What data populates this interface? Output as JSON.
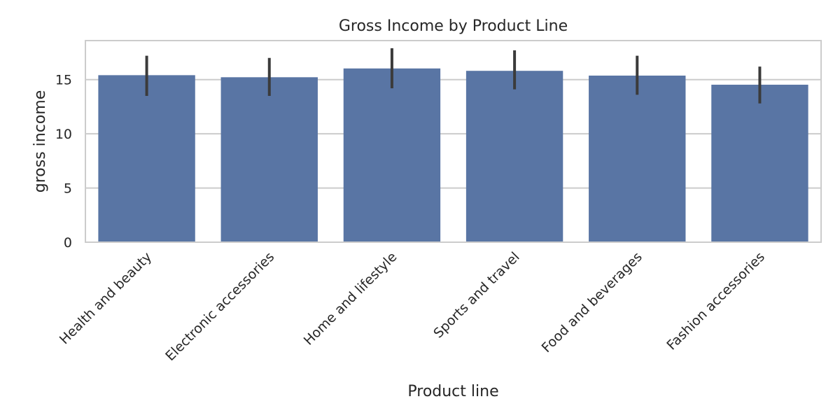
{
  "chart_data": {
    "type": "bar",
    "title": "Gross Income by Product Line",
    "xlabel": "Product line",
    "ylabel": "gross income",
    "categories": [
      "Health and beauty",
      "Electronic accessories",
      "Home and lifestyle",
      "Sports and travel",
      "Food and beverages",
      "Fashion accessories"
    ],
    "values": [
      15.41,
      15.22,
      16.03,
      15.81,
      15.37,
      14.53
    ],
    "error_low": [
      13.5,
      13.5,
      14.2,
      14.1,
      13.6,
      12.8
    ],
    "error_high": [
      17.2,
      17.0,
      17.9,
      17.7,
      17.2,
      16.2
    ],
    "yticks": [
      0,
      5,
      10,
      15
    ],
    "ylim": [
      0,
      18.6
    ],
    "grid": true,
    "bar_color": "#5975a4",
    "errorbar_color": "#3b3b3b"
  }
}
